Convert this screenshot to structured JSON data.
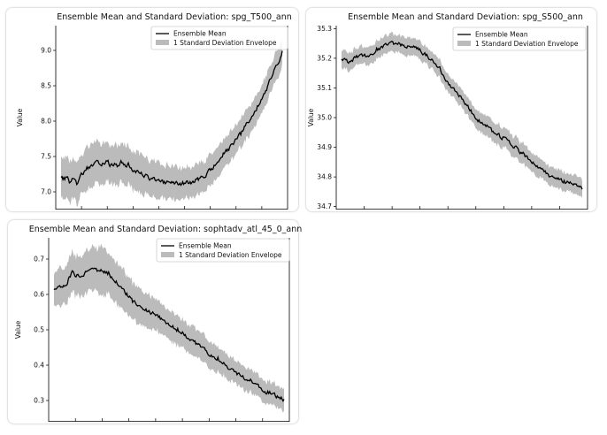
{
  "chart_data": [
    {
      "type": "line",
      "title": "Ensemble Mean and Standard Deviation: spg_T500_ann",
      "ylabel": "Value",
      "ylim": [
        6.75,
        9.35
      ],
      "yticks": [
        "7.0",
        "7.5",
        "8.0",
        "8.5",
        "9.0"
      ],
      "grid": false,
      "legend_position": "top-right",
      "series": [
        {
          "name": "Ensemble Mean",
          "kind": "line",
          "color": "#000000",
          "anchors": [
            [
              0,
              7.22
            ],
            [
              3,
              7.18
            ],
            [
              5,
              7.22
            ],
            [
              8,
              7.12
            ],
            [
              10,
              7.2
            ],
            [
              12,
              7.15
            ],
            [
              15,
              7.1
            ],
            [
              18,
              7.22
            ],
            [
              22,
              7.3
            ],
            [
              25,
              7.35
            ],
            [
              30,
              7.38
            ],
            [
              35,
              7.42
            ],
            [
              38,
              7.4
            ],
            [
              42,
              7.45
            ],
            [
              45,
              7.38
            ],
            [
              48,
              7.35
            ],
            [
              50,
              7.4
            ],
            [
              52,
              7.32
            ],
            [
              55,
              7.45
            ],
            [
              58,
              7.36
            ],
            [
              62,
              7.38
            ],
            [
              65,
              7.32
            ],
            [
              70,
              7.28
            ],
            [
              75,
              7.25
            ],
            [
              80,
              7.2
            ],
            [
              85,
              7.18
            ],
            [
              90,
              7.15
            ],
            [
              95,
              7.12
            ],
            [
              100,
              7.15
            ],
            [
              105,
              7.12
            ],
            [
              110,
              7.1
            ],
            [
              115,
              7.14
            ],
            [
              120,
              7.12
            ],
            [
              125,
              7.18
            ],
            [
              130,
              7.2
            ],
            [
              135,
              7.28
            ],
            [
              140,
              7.35
            ],
            [
              145,
              7.45
            ],
            [
              150,
              7.55
            ],
            [
              155,
              7.62
            ],
            [
              160,
              7.72
            ],
            [
              165,
              7.82
            ],
            [
              170,
              7.95
            ],
            [
              175,
              8.05
            ],
            [
              180,
              8.2
            ],
            [
              185,
              8.35
            ],
            [
              190,
              8.5
            ],
            [
              195,
              8.7
            ],
            [
              200,
              8.85
            ],
            [
              203,
              9.0
            ]
          ]
        },
        {
          "name": "1 Standard Deviation Envelope",
          "kind": "band",
          "color": "#bbbbbb",
          "halfwidth": [
            [
              0,
              0.3
            ],
            [
              60,
              0.28
            ],
            [
              120,
              0.22
            ],
            [
              203,
              0.2
            ]
          ]
        }
      ]
    },
    {
      "type": "line",
      "title": "Ensemble Mean and Standard Deviation: spg_S500_ann",
      "ylabel": "Value",
      "ylim": [
        34.69,
        35.31
      ],
      "yticks": [
        "34.7",
        "34.8",
        "34.9",
        "35.0",
        "35.1",
        "35.2",
        "35.3"
      ],
      "grid": false,
      "legend_position": "top-right",
      "series": [
        {
          "name": "Ensemble Mean",
          "kind": "line",
          "color": "#000000",
          "anchors": [
            [
              0,
              35.2
            ],
            [
              5,
              35.19
            ],
            [
              10,
              35.2
            ],
            [
              15,
              35.21
            ],
            [
              20,
              35.21
            ],
            [
              25,
              35.23
            ],
            [
              30,
              35.24
            ],
            [
              35,
              35.25
            ],
            [
              40,
              35.25
            ],
            [
              45,
              35.24
            ],
            [
              50,
              35.24
            ],
            [
              55,
              35.23
            ],
            [
              60,
              35.21
            ],
            [
              65,
              35.19
            ],
            [
              70,
              35.16
            ],
            [
              75,
              35.12
            ],
            [
              80,
              35.09
            ],
            [
              85,
              35.06
            ],
            [
              90,
              35.03
            ],
            [
              95,
              35.0
            ],
            [
              100,
              34.98
            ],
            [
              105,
              34.96
            ],
            [
              110,
              34.94
            ],
            [
              115,
              34.93
            ],
            [
              120,
              34.91
            ],
            [
              125,
              34.89
            ],
            [
              130,
              34.87
            ],
            [
              135,
              34.85
            ],
            [
              140,
              34.83
            ],
            [
              145,
              34.81
            ],
            [
              150,
              34.8
            ],
            [
              155,
              34.79
            ],
            [
              160,
              34.78
            ],
            [
              165,
              34.77
            ],
            [
              170,
              34.76
            ]
          ]
        },
        {
          "name": "1 Standard Deviation Envelope",
          "kind": "band",
          "color": "#bbbbbb",
          "halfwidth": [
            [
              0,
              0.03
            ],
            [
              40,
              0.03
            ],
            [
              80,
              0.03
            ],
            [
              120,
              0.035
            ],
            [
              170,
              0.03
            ]
          ]
        }
      ]
    },
    {
      "type": "line",
      "title": "Ensemble Mean and Standard Deviation: sophtadv_atl_45_0_ann",
      "ylabel": "Value",
      "ylim": [
        0.24,
        0.76
      ],
      "yticks": [
        "0.3",
        "0.4",
        "0.5",
        "0.6",
        "0.7"
      ],
      "grid": false,
      "legend_position": "top-right",
      "series": [
        {
          "name": "Ensemble Mean",
          "kind": "line",
          "color": "#000000",
          "anchors": [
            [
              0,
              0.615
            ],
            [
              5,
              0.62
            ],
            [
              10,
              0.63
            ],
            [
              15,
              0.66
            ],
            [
              20,
              0.65
            ],
            [
              25,
              0.66
            ],
            [
              30,
              0.675
            ],
            [
              35,
              0.67
            ],
            [
              40,
              0.665
            ],
            [
              45,
              0.66
            ],
            [
              50,
              0.64
            ],
            [
              55,
              0.62
            ],
            [
              60,
              0.6
            ],
            [
              65,
              0.58
            ],
            [
              70,
              0.57
            ],
            [
              75,
              0.56
            ],
            [
              80,
              0.55
            ],
            [
              85,
              0.54
            ],
            [
              90,
              0.525
            ],
            [
              95,
              0.515
            ],
            [
              100,
              0.505
            ],
            [
              105,
              0.495
            ],
            [
              110,
              0.48
            ],
            [
              115,
              0.47
            ],
            [
              120,
              0.455
            ],
            [
              125,
              0.44
            ],
            [
              130,
              0.43
            ],
            [
              135,
              0.42
            ],
            [
              140,
              0.405
            ],
            [
              145,
              0.39
            ],
            [
              150,
              0.38
            ],
            [
              155,
              0.37
            ],
            [
              160,
              0.36
            ],
            [
              165,
              0.35
            ],
            [
              170,
              0.34
            ],
            [
              175,
              0.325
            ],
            [
              180,
              0.32
            ],
            [
              185,
              0.31
            ],
            [
              190,
              0.3
            ]
          ]
        },
        {
          "name": "1 Standard Deviation Envelope",
          "kind": "band",
          "color": "#bbbbbb",
          "halfwidth": [
            [
              0,
              0.05
            ],
            [
              40,
              0.065
            ],
            [
              80,
              0.045
            ],
            [
              140,
              0.035
            ],
            [
              190,
              0.03
            ]
          ]
        }
      ]
    }
  ]
}
